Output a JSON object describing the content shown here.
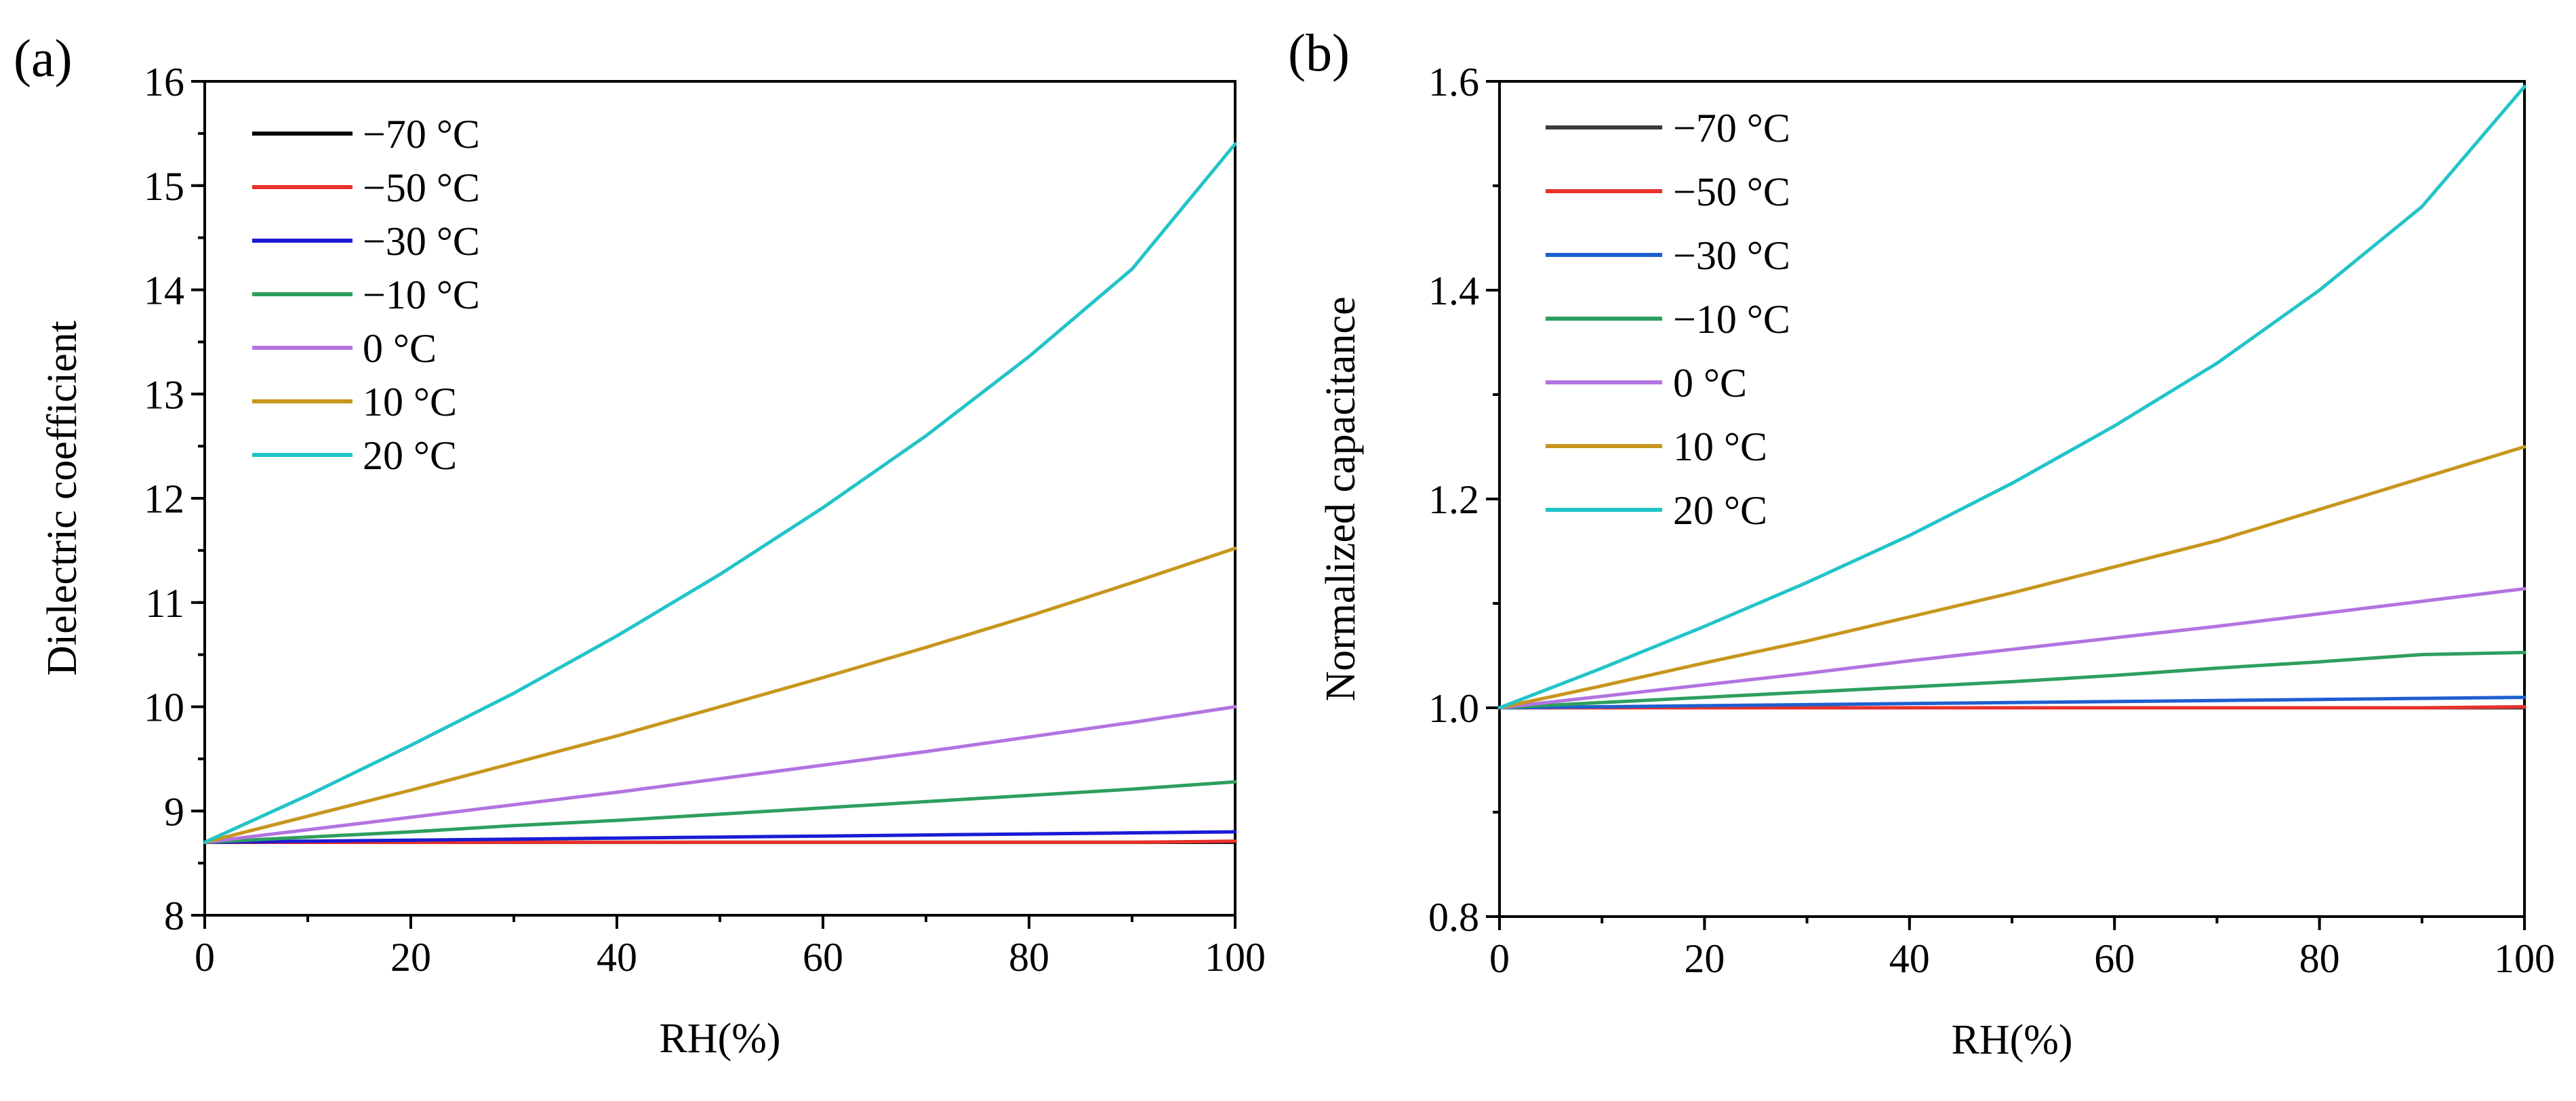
{
  "chart_data": [
    {
      "type": "line",
      "panel_label": "(a)",
      "title": "",
      "xlabel": "RH(%)",
      "ylabel": "Dielectric coefficient",
      "xlim": [
        0,
        100
      ],
      "ylim": [
        8,
        16
      ],
      "xticks": [
        0,
        20,
        40,
        60,
        80,
        100
      ],
      "xtick_labels": [
        "0",
        "20",
        "40",
        "60",
        "80",
        "100"
      ],
      "xminor_step": 10,
      "yticks": [
        8,
        9,
        10,
        11,
        12,
        13,
        14,
        15,
        16
      ],
      "ytick_labels": [
        "8",
        "9",
        "10",
        "11",
        "12",
        "13",
        "14",
        "15",
        "16"
      ],
      "yminor_step": 0.5,
      "grid": false,
      "legend_position": "top-left",
      "x": [
        0,
        10,
        20,
        30,
        40,
        50,
        60,
        70,
        80,
        90,
        100
      ],
      "series": [
        {
          "name": "−70 °C",
          "color": "#000000",
          "values": [
            8.7,
            8.7,
            8.7,
            8.7,
            8.7,
            8.7,
            8.7,
            8.7,
            8.7,
            8.7,
            8.7
          ]
        },
        {
          "name": "−50 °C",
          "color": "#e8312b",
          "values": [
            8.7,
            8.7,
            8.7,
            8.7,
            8.7,
            8.7,
            8.7,
            8.7,
            8.7,
            8.7,
            8.71
          ]
        },
        {
          "name": "−30 °C",
          "color": "#1a1ad6",
          "values": [
            8.7,
            8.71,
            8.72,
            8.73,
            8.74,
            8.75,
            8.76,
            8.77,
            8.78,
            8.79,
            8.8
          ]
        },
        {
          "name": "−10 °C",
          "color": "#2e9e5e",
          "values": [
            8.7,
            8.75,
            8.8,
            8.86,
            8.91,
            8.97,
            9.03,
            9.09,
            9.15,
            9.21,
            9.28
          ]
        },
        {
          "name": "0 °C",
          "color": "#b373e0",
          "values": [
            8.7,
            8.82,
            8.94,
            9.06,
            9.18,
            9.31,
            9.44,
            9.57,
            9.71,
            9.85,
            10.0
          ]
        },
        {
          "name": "10 °C",
          "color": "#c8961e",
          "values": [
            8.7,
            8.95,
            9.2,
            9.46,
            9.72,
            10.0,
            10.28,
            10.57,
            10.87,
            11.19,
            11.52
          ]
        },
        {
          "name": "20 °C",
          "color": "#22c4c8",
          "values": [
            8.7,
            9.15,
            9.63,
            10.13,
            10.68,
            11.27,
            11.91,
            12.6,
            13.36,
            14.2,
            15.4
          ]
        }
      ]
    },
    {
      "type": "line",
      "panel_label": "(b)",
      "title": "",
      "xlabel": "RH(%)",
      "ylabel": "Normalized capacitance",
      "xlim": [
        0,
        100
      ],
      "ylim": [
        0.8,
        1.6
      ],
      "xticks": [
        0,
        20,
        40,
        60,
        80,
        100
      ],
      "xtick_labels": [
        "0",
        "20",
        "40",
        "60",
        "80",
        "100"
      ],
      "xminor_step": 10,
      "yticks": [
        0.8,
        1.0,
        1.2,
        1.4,
        1.6
      ],
      "ytick_labels": [
        "0.8",
        "1.0",
        "1.2",
        "1.4",
        "1.6"
      ],
      "yminor_step": 0.1,
      "grid": false,
      "legend_position": "top-left",
      "x": [
        0,
        10,
        20,
        30,
        40,
        50,
        60,
        70,
        80,
        90,
        100
      ],
      "series": [
        {
          "name": "−70 °C",
          "color": "#3a3a3a",
          "values": [
            1.0,
            1.0,
            1.0,
            1.0,
            1.0,
            1.0,
            1.0,
            1.0,
            1.0,
            1.0,
            1.0
          ]
        },
        {
          "name": "−50 °C",
          "color": "#e8312b",
          "values": [
            1.0,
            1.0,
            1.0,
            1.0,
            1.0,
            1.0,
            1.0,
            1.0,
            1.0,
            1.0,
            1.001
          ]
        },
        {
          "name": "−30 °C",
          "color": "#1f5fd0",
          "values": [
            1.0,
            1.001,
            1.002,
            1.003,
            1.004,
            1.005,
            1.006,
            1.007,
            1.008,
            1.009,
            1.01
          ]
        },
        {
          "name": "−10 °C",
          "color": "#2e9e5e",
          "values": [
            1.0,
            1.005,
            1.01,
            1.015,
            1.02,
            1.025,
            1.031,
            1.038,
            1.044,
            1.051,
            1.053
          ]
        },
        {
          "name": "0 °C",
          "color": "#b373e0",
          "values": [
            1.0,
            1.011,
            1.022,
            1.033,
            1.045,
            1.056,
            1.067,
            1.078,
            1.09,
            1.102,
            1.114
          ]
        },
        {
          "name": "10 °C",
          "color": "#c8961e",
          "values": [
            1.0,
            1.021,
            1.043,
            1.064,
            1.087,
            1.11,
            1.135,
            1.16,
            1.19,
            1.22,
            1.25
          ]
        },
        {
          "name": "20 °C",
          "color": "#22c4c8",
          "values": [
            1.0,
            1.038,
            1.078,
            1.12,
            1.165,
            1.215,
            1.27,
            1.33,
            1.4,
            1.48,
            1.595
          ]
        }
      ]
    }
  ]
}
